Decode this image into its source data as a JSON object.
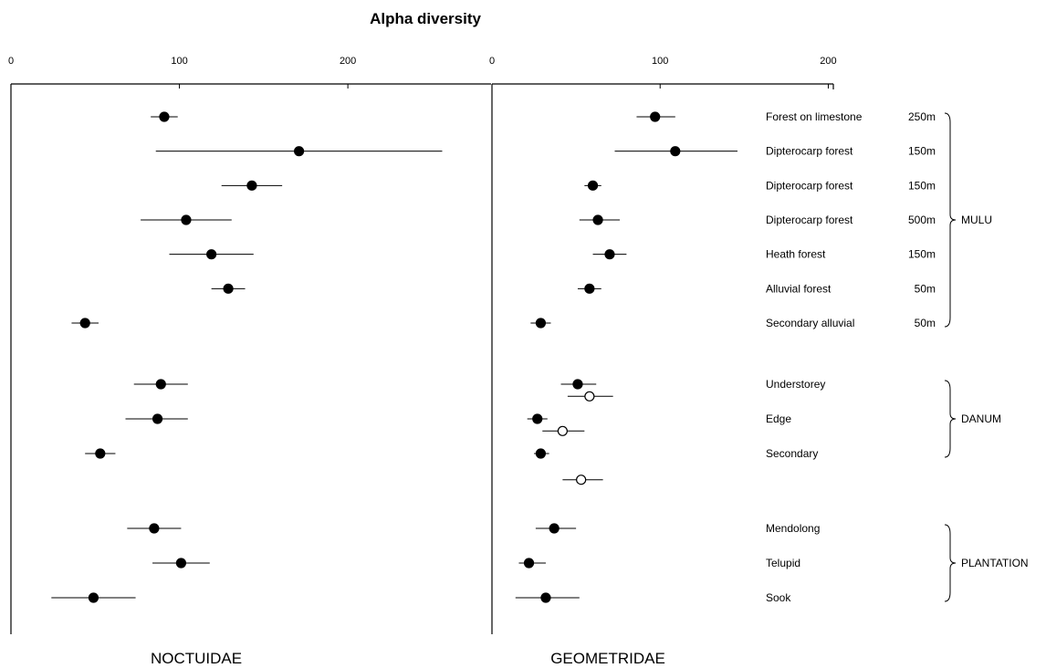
{
  "chart_data": {
    "type": "scatter",
    "title": "Alpha diversity",
    "subtitle": "",
    "xlabel": "",
    "ylabel": "",
    "x_ticks": [
      0,
      100,
      200
    ],
    "panels": [
      {
        "name": "NOCTUIDAE",
        "xlim": [
          0,
          285
        ],
        "series": [
          {
            "marker": "filled",
            "points": [
              {
                "row": 0,
                "x": 91,
                "low": 83,
                "high": 99
              },
              {
                "row": 1,
                "x": 171,
                "low": 86,
                "high": 256
              },
              {
                "row": 2,
                "x": 143,
                "low": 125,
                "high": 161
              },
              {
                "row": 3,
                "x": 104,
                "low": 77,
                "high": 131
              },
              {
                "row": 4,
                "x": 119,
                "low": 94,
                "high": 144
              },
              {
                "row": 5,
                "x": 129,
                "low": 119,
                "high": 139
              },
              {
                "row": 6,
                "x": 44,
                "low": 36,
                "high": 52
              },
              {
                "row": 7,
                "x": 89,
                "low": 73,
                "high": 105
              },
              {
                "row": 8,
                "x": 87,
                "low": 68,
                "high": 105
              },
              {
                "row": 9,
                "x": 53,
                "low": 44,
                "high": 62
              },
              {
                "row": 10,
                "x": 85,
                "low": 69,
                "high": 101
              },
              {
                "row": 11,
                "x": 101,
                "low": 84,
                "high": 118
              },
              {
                "row": 12,
                "x": 49,
                "low": 24,
                "high": 74
              }
            ]
          }
        ]
      },
      {
        "name": "GEOMETRIDAE",
        "xlim": [
          0,
          203
        ],
        "series": [
          {
            "marker": "filled",
            "points": [
              {
                "row": 0,
                "x": 97,
                "low": 86,
                "high": 109
              },
              {
                "row": 1,
                "x": 109,
                "low": 73,
                "high": 146
              },
              {
                "row": 2,
                "x": 60,
                "low": 55,
                "high": 65
              },
              {
                "row": 3,
                "x": 63,
                "low": 52,
                "high": 76
              },
              {
                "row": 4,
                "x": 70,
                "low": 60,
                "high": 80
              },
              {
                "row": 5,
                "x": 58,
                "low": 51,
                "high": 65
              },
              {
                "row": 6,
                "x": 29,
                "low": 23,
                "high": 35
              },
              {
                "row": 7,
                "x": 51,
                "low": 41,
                "high": 62
              },
              {
                "row": 8,
                "x": 27,
                "low": 21,
                "high": 33
              },
              {
                "row": 9,
                "x": 29,
                "low": 25,
                "high": 34
              },
              {
                "row": 10,
                "x": 37,
                "low": 26,
                "high": 50
              },
              {
                "row": 11,
                "x": 22,
                "low": 16,
                "high": 32
              },
              {
                "row": 12,
                "x": 32,
                "low": 14,
                "high": 52
              }
            ]
          },
          {
            "marker": "open",
            "points": [
              {
                "row": 7.35,
                "x": 58,
                "low": 45,
                "high": 72
              },
              {
                "row": 8.35,
                "x": 42,
                "low": 30,
                "high": 55
              },
              {
                "row": 9.35,
                "x": 53,
                "low": 42,
                "high": 66
              }
            ]
          }
        ]
      }
    ],
    "sites": [
      {
        "label": "Forest on limestone",
        "elevation": "250m"
      },
      {
        "label": "Dipterocarp forest",
        "elevation": "150m"
      },
      {
        "label": "Dipterocarp forest",
        "elevation": "150m"
      },
      {
        "label": "Dipterocarp forest",
        "elevation": "500m"
      },
      {
        "label": "Heath forest",
        "elevation": "150m"
      },
      {
        "label": "Alluvial forest",
        "elevation": "50m"
      },
      {
        "label": "Secondary alluvial",
        "elevation": "50m"
      },
      {
        "label": "Understorey",
        "elevation": ""
      },
      {
        "label": "Edge",
        "elevation": ""
      },
      {
        "label": "Secondary",
        "elevation": ""
      },
      {
        "label": "Mendolong",
        "elevation": ""
      },
      {
        "label": "Telupid",
        "elevation": ""
      },
      {
        "label": "Sook",
        "elevation": ""
      }
    ],
    "groups": [
      {
        "label": "MULU",
        "rows": [
          0,
          6
        ]
      },
      {
        "label": "DANUM",
        "rows": [
          7,
          9
        ]
      },
      {
        "label": "PLANTATION",
        "rows": [
          10,
          12
        ]
      }
    ],
    "grid": false,
    "legend": "none"
  }
}
